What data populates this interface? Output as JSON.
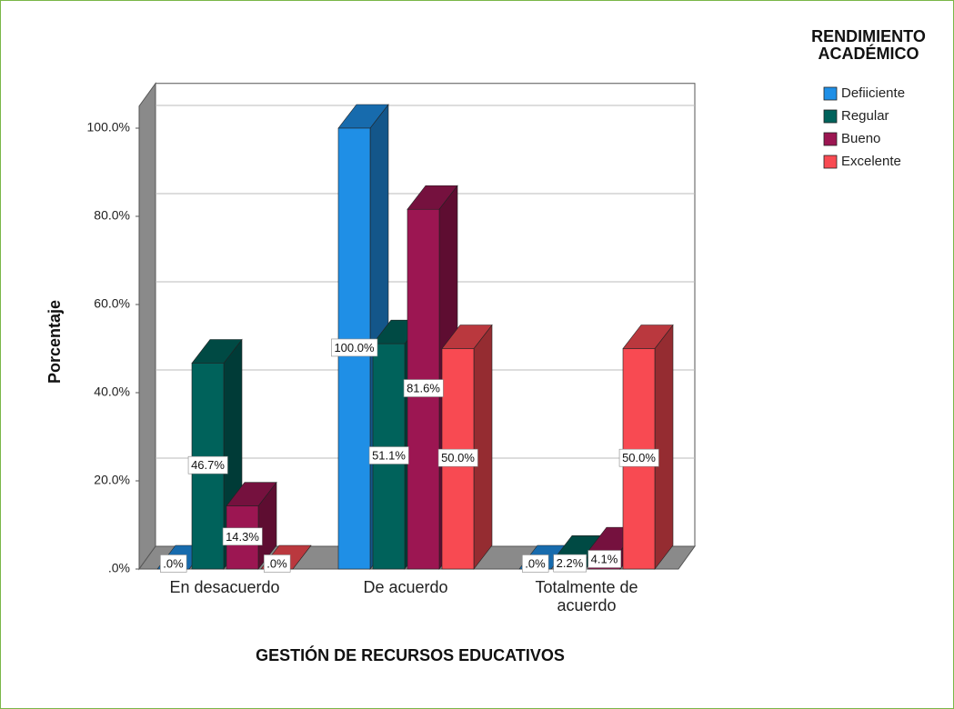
{
  "chart_data": {
    "type": "bar3d",
    "categories": [
      "En desacuerdo",
      "De acuerdo",
      "Totalmente de acuerdo"
    ],
    "series": [
      {
        "name": "Defiiciente",
        "color": "#1f8fe6",
        "values": [
          0,
          100,
          0
        ],
        "value_labels": [
          ".0%",
          "100.0%",
          ".0%"
        ]
      },
      {
        "name": "Regular",
        "color": "#00625b",
        "values": [
          46.7,
          51.1,
          2.2
        ],
        "value_labels": [
          "46.7%",
          "51.1%",
          "2.2%"
        ]
      },
      {
        "name": "Bueno",
        "color": "#9c1652",
        "values": [
          14.3,
          81.6,
          4.1
        ],
        "value_labels": [
          "14.3%",
          "81.6%",
          "4.1%"
        ]
      },
      {
        "name": "Excelente",
        "color": "#f84a52",
        "values": [
          0,
          50,
          50
        ],
        "value_labels": [
          ".0%",
          "50.0%",
          "50.0%"
        ]
      }
    ],
    "legend_title": "RENDIMIENTO ACADÉMICO",
    "x_label": "GESTIÓN DE RECURSOS EDUCATIVOS",
    "y_label": "Porcentaje",
    "ylim": [
      0,
      105
    ],
    "yticks": [
      {
        "value": 0,
        "label": ".0%"
      },
      {
        "value": 20,
        "label": "20.0%"
      },
      {
        "value": 40,
        "label": "40.0%"
      },
      {
        "value": 60,
        "label": "60.0%"
      },
      {
        "value": 80,
        "label": "80.0%"
      },
      {
        "value": 100,
        "label": "100.0%"
      }
    ],
    "grid": true,
    "legend": "right"
  }
}
